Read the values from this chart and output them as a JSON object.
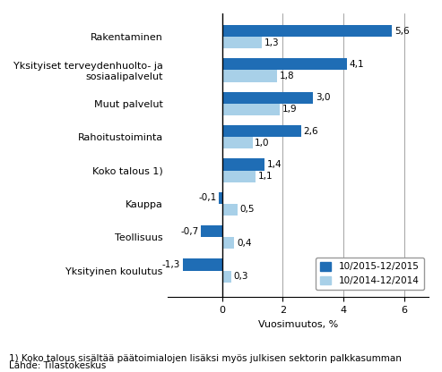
{
  "categories": [
    "Rakentaminen",
    "Yksityiset terveydenhuolto- ja\nsosiaalipalvelut",
    "Muut palvelut",
    "Rahoitustoiminta",
    "Koko talous 1)",
    "Kauppa",
    "Teollisuus",
    "Yksityinen koulutus"
  ],
  "series_2015": [
    5.6,
    4.1,
    3.0,
    2.6,
    1.4,
    -0.1,
    -0.7,
    -1.3
  ],
  "series_2014": [
    1.3,
    1.8,
    1.9,
    1.0,
    1.1,
    0.5,
    0.4,
    0.3
  ],
  "color_2015": "#1F6DB5",
  "color_2014": "#A8D0E8",
  "legend_2015": "10/2015-12/2015",
  "legend_2014": "10/2014-12/2014",
  "xlabel": "Vuosimuutos, %",
  "xlim": [
    -1.8,
    6.8
  ],
  "xticks": [
    0,
    2,
    4,
    6
  ],
  "footnote1": "1) Koko talous sisältää päätoimialojen lisäksi myös julkisen sektorin palkkasumman",
  "footnote2": "Lähde: Tilastokeskus",
  "bar_height": 0.35,
  "fontsize_labels": 8,
  "fontsize_values": 7.5,
  "fontsize_axis": 8,
  "fontsize_legend": 7.5,
  "fontsize_footnote": 7.5
}
